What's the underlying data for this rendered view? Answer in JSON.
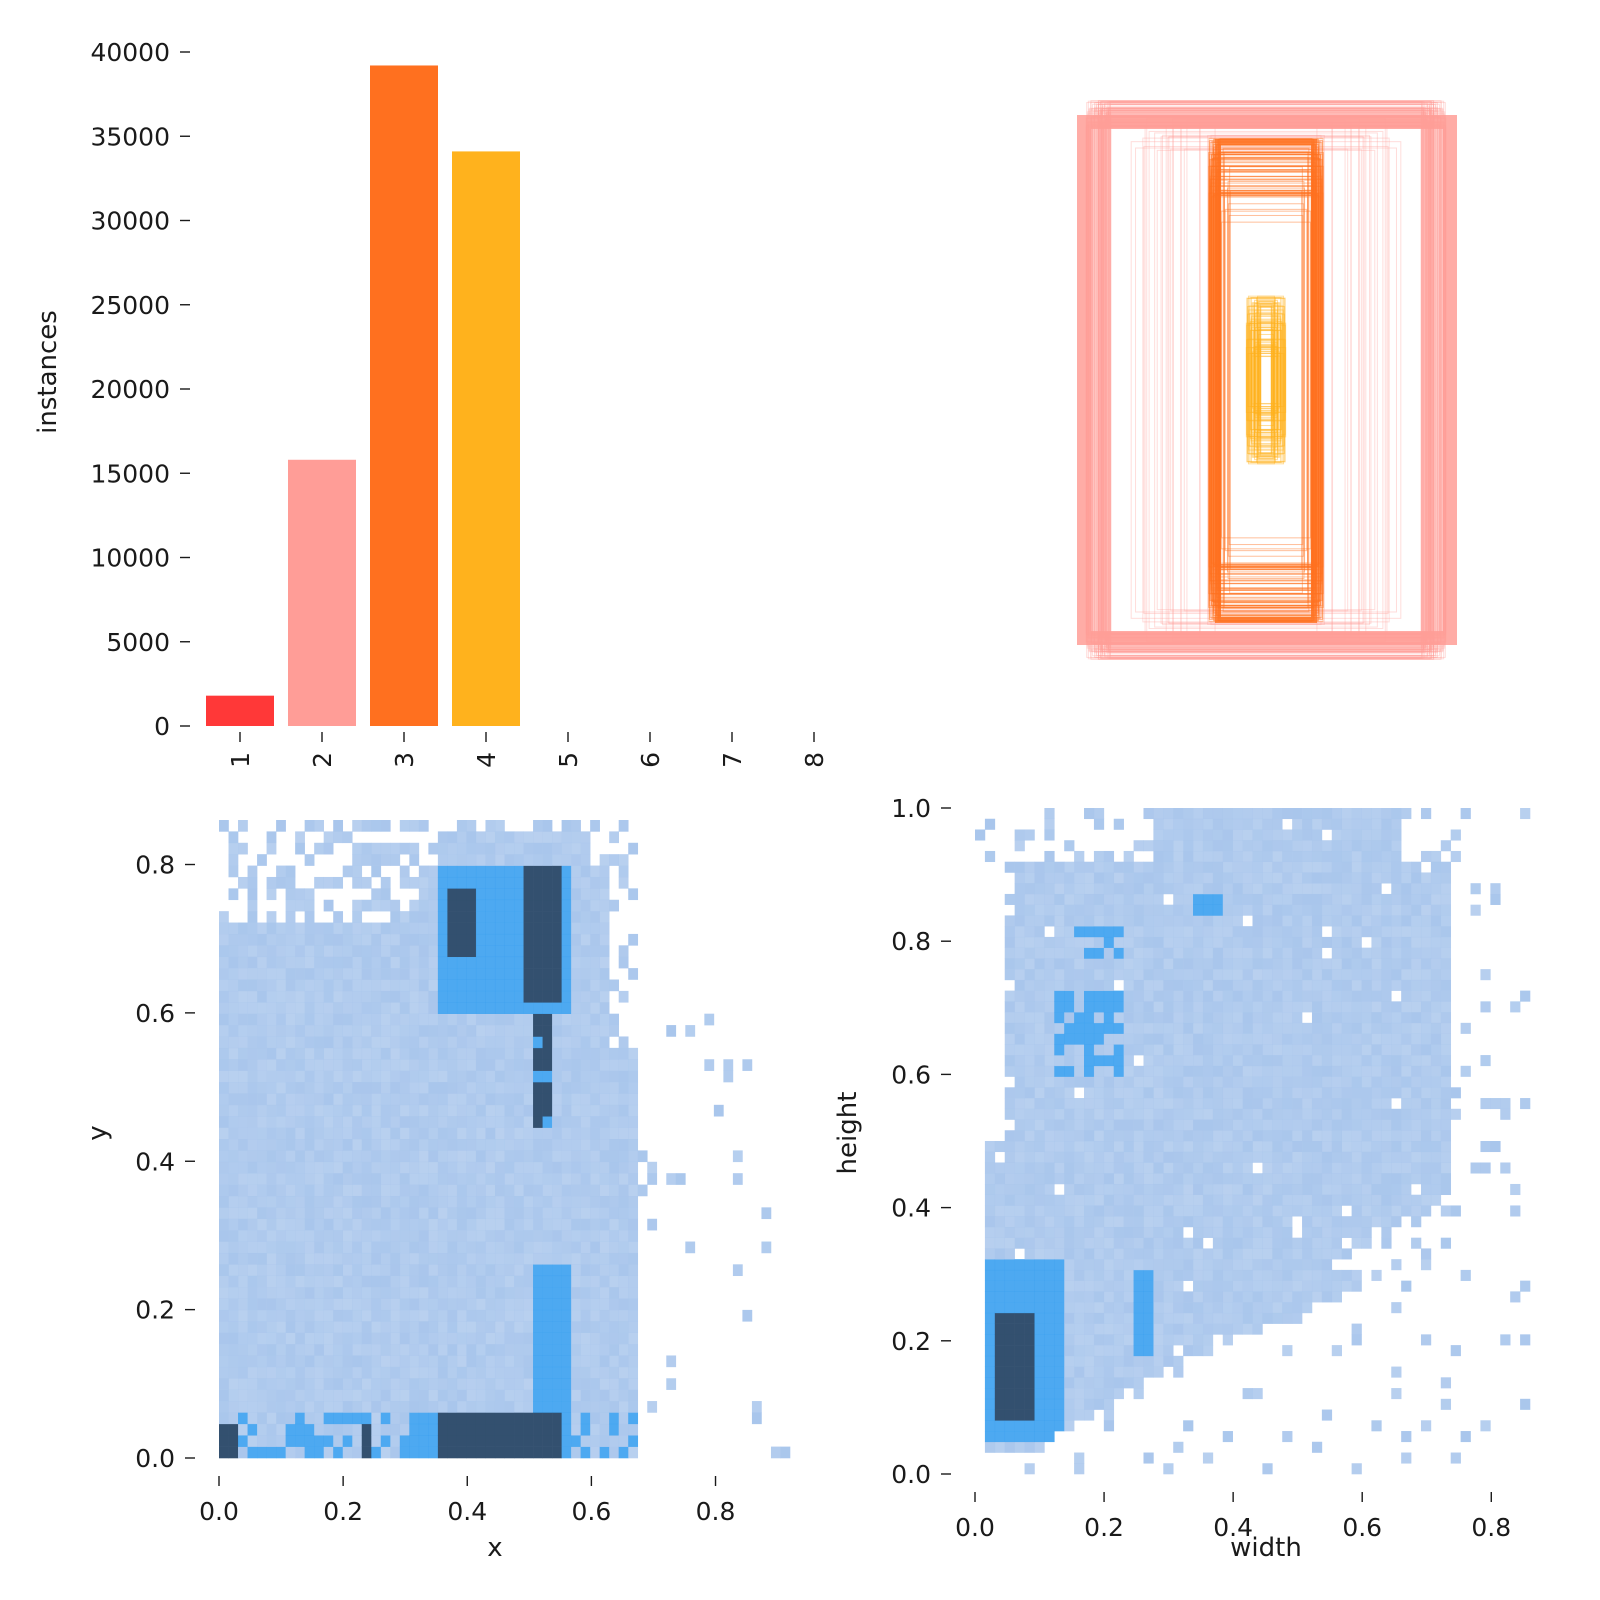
{
  "chart_data": [
    {
      "type": "bar",
      "categories": [
        "1",
        "2",
        "3",
        "4",
        "5",
        "6",
        "7",
        "8"
      ],
      "values": [
        1800,
        15800,
        39200,
        34100,
        0,
        0,
        0,
        0
      ],
      "bar_colors": [
        "#ff3838",
        "#ff9d97",
        "#ff701f",
        "#ffb21d"
      ],
      "xlabel": "",
      "ylabel": "instances",
      "ylim": [
        0,
        40000
      ],
      "yticks": [
        0,
        5000,
        10000,
        15000,
        20000,
        25000,
        30000,
        35000,
        40000
      ],
      "grid": false
    },
    {
      "type": "box-overlay",
      "description_colors": [
        "#ff9d97",
        "#ff701f",
        "#ffb21d"
      ],
      "groups": [
        {
          "class": "2",
          "color": "#ff9d97",
          "center": [
            0.5,
            0.5
          ],
          "width_range": [
            0.16,
            0.72
          ],
          "height_range": [
            0.6,
            1.0
          ]
        },
        {
          "class": "3",
          "color": "#ff701f",
          "center": [
            0.5,
            0.5
          ],
          "width_range": [
            0.14,
            0.22
          ],
          "height_range": [
            0.55,
            0.9
          ]
        },
        {
          "class": "4",
          "color": "#ffb21d",
          "center": [
            0.5,
            0.5
          ],
          "width_range": [
            0.02,
            0.08
          ],
          "height_range": [
            0.08,
            0.3
          ]
        }
      ]
    },
    {
      "type": "heatmap",
      "xlabel": "x",
      "ylabel": "y",
      "xlim": [
        0.0,
        0.92
      ],
      "ylim": [
        0.0,
        0.86
      ],
      "xticks": [
        "0.0",
        "0.2",
        "0.4",
        "0.6",
        "0.8"
      ],
      "yticks": [
        "0.0",
        "0.2",
        "0.4",
        "0.6",
        "0.8"
      ],
      "colors": {
        "low": "#a9c6ec",
        "mid": "#3aa0f0",
        "high": "#33506f"
      },
      "hotspots": [
        {
          "x": 0.45,
          "y": 0.04,
          "level": "high"
        },
        {
          "x": 0.52,
          "y": 0.72,
          "level": "high"
        },
        {
          "x": 0.4,
          "y": 0.72,
          "level": "high"
        },
        {
          "x": 0.52,
          "y": 0.2,
          "level": "mid"
        },
        {
          "x": 0.52,
          "y": 0.5,
          "level": "mid"
        },
        {
          "x": 0.02,
          "y": 0.03,
          "level": "high"
        },
        {
          "x": 0.24,
          "y": 0.03,
          "level": "high"
        }
      ]
    },
    {
      "type": "heatmap",
      "xlabel": "width",
      "ylabel": "height",
      "xlim": [
        0.0,
        0.86
      ],
      "ylim": [
        0.0,
        1.0
      ],
      "xticks": [
        "0.0",
        "0.2",
        "0.4",
        "0.6",
        "0.8"
      ],
      "yticks": [
        "0.0",
        "0.2",
        "0.4",
        "0.6",
        "0.8",
        "1.0"
      ],
      "colors": {
        "low": "#a9c6ec",
        "mid": "#3aa0f0",
        "high": "#33506f"
      },
      "hotspots": [
        {
          "x": 0.06,
          "y": 0.17,
          "level": "high"
        },
        {
          "x": 0.1,
          "y": 0.22,
          "level": "mid"
        },
        {
          "x": 0.18,
          "y": 0.65,
          "level": "mid"
        },
        {
          "x": 0.2,
          "y": 0.79,
          "level": "mid"
        },
        {
          "x": 0.36,
          "y": 0.86,
          "level": "mid"
        }
      ]
    }
  ]
}
